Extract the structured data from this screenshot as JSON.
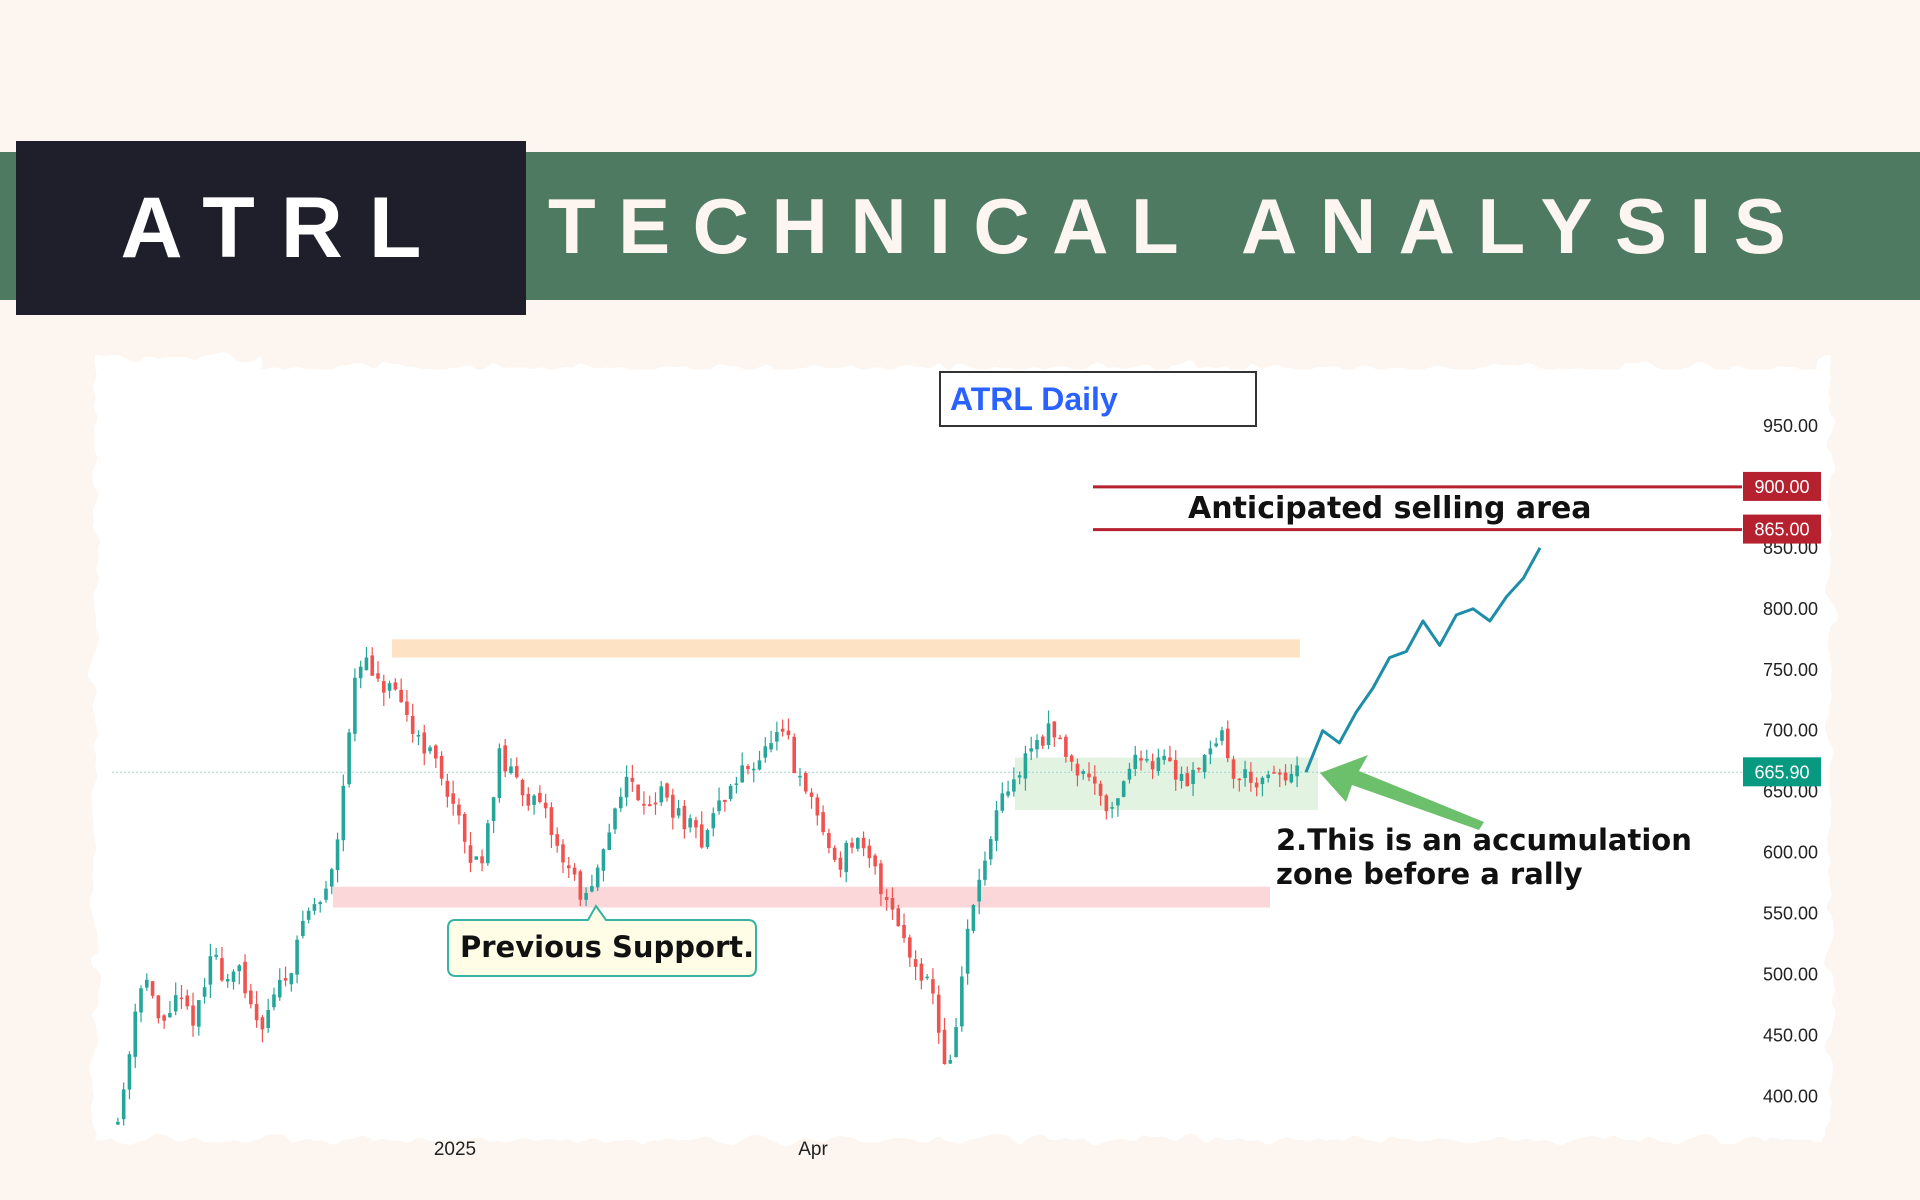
{
  "header": {
    "ticker": "ATRL",
    "title": "TECHNICAL ANALYSIS"
  },
  "colors": {
    "band": "#4d7a60",
    "ticker_bg": "#1f1f2c",
    "background": "#fdf5ef",
    "up_candle": "#26a69a",
    "down_candle": "#ef5350",
    "resistance_line": "#b5212e",
    "current_price_tag": "#089981",
    "projection": "#1e8ea8",
    "arrow": "#6cc06c"
  },
  "chart_data": {
    "type": "candlestick",
    "chart_title": "ATRL Daily",
    "x_ticks": [
      "2025",
      "Apr"
    ],
    "y_ticks": [
      "950.00",
      "900.00",
      "850.00",
      "800.00",
      "750.00",
      "700.00",
      "650.00",
      "600.00",
      "550.00",
      "500.00",
      "450.00",
      "400.00"
    ],
    "ylim": [
      393,
      1000
    ],
    "grid": false,
    "price_path": [
      380,
      420,
      470,
      505,
      480,
      455,
      470,
      480,
      470,
      465,
      480,
      520,
      505,
      495,
      510,
      480,
      470,
      460,
      480,
      490,
      500,
      520,
      550,
      555,
      560,
      580,
      620,
      690,
      740,
      760,
      745,
      730,
      740,
      720,
      710,
      700,
      690,
      680,
      665,
      650,
      630,
      600,
      590,
      600,
      640,
      680,
      665,
      660,
      650,
      640,
      635,
      620,
      600,
      590,
      575,
      560,
      570,
      590,
      620,
      650,
      660,
      650,
      645,
      640,
      650,
      640,
      630,
      625,
      615,
      610,
      630,
      640,
      650,
      660,
      670,
      675,
      680,
      690,
      695,
      690,
      660,
      650,
      640,
      620,
      600,
      590,
      605,
      610,
      595,
      590,
      570,
      560,
      545,
      520,
      510,
      500,
      490,
      440,
      420,
      470,
      530,
      560,
      590,
      610,
      640,
      650,
      660,
      680,
      690,
      695,
      700,
      690,
      680,
      670,
      665,
      660,
      650,
      630,
      650,
      670,
      675,
      680,
      675,
      680,
      670,
      665,
      660,
      670,
      680,
      690,
      700,
      670,
      660,
      665,
      660,
      655,
      660,
      665,
      660,
      665
    ],
    "current_price": 665.9,
    "current_price_label": "665.90",
    "levels": [
      {
        "value": 900,
        "label": "900.00"
      },
      {
        "value": 865,
        "label": "865.00"
      }
    ],
    "zones": [
      {
        "name": "resistance",
        "from": 760,
        "to": 775,
        "color": "#fde3c4"
      },
      {
        "name": "previous-support",
        "from": 555,
        "to": 572,
        "color": "#fbd7d9"
      },
      {
        "name": "accumulation",
        "from": 635,
        "to": 678,
        "color": "#e3f3e1"
      }
    ],
    "projection": [
      666,
      700,
      690,
      715,
      735,
      760,
      765,
      790,
      770,
      795,
      800,
      790,
      810,
      825,
      850
    ],
    "annotations": {
      "selling_area": "Anticipated selling area",
      "previous_support": "Previous Support.",
      "accumulation_line1": "2.This is an accumulation",
      "accumulation_line2": "zone before a rally"
    }
  }
}
